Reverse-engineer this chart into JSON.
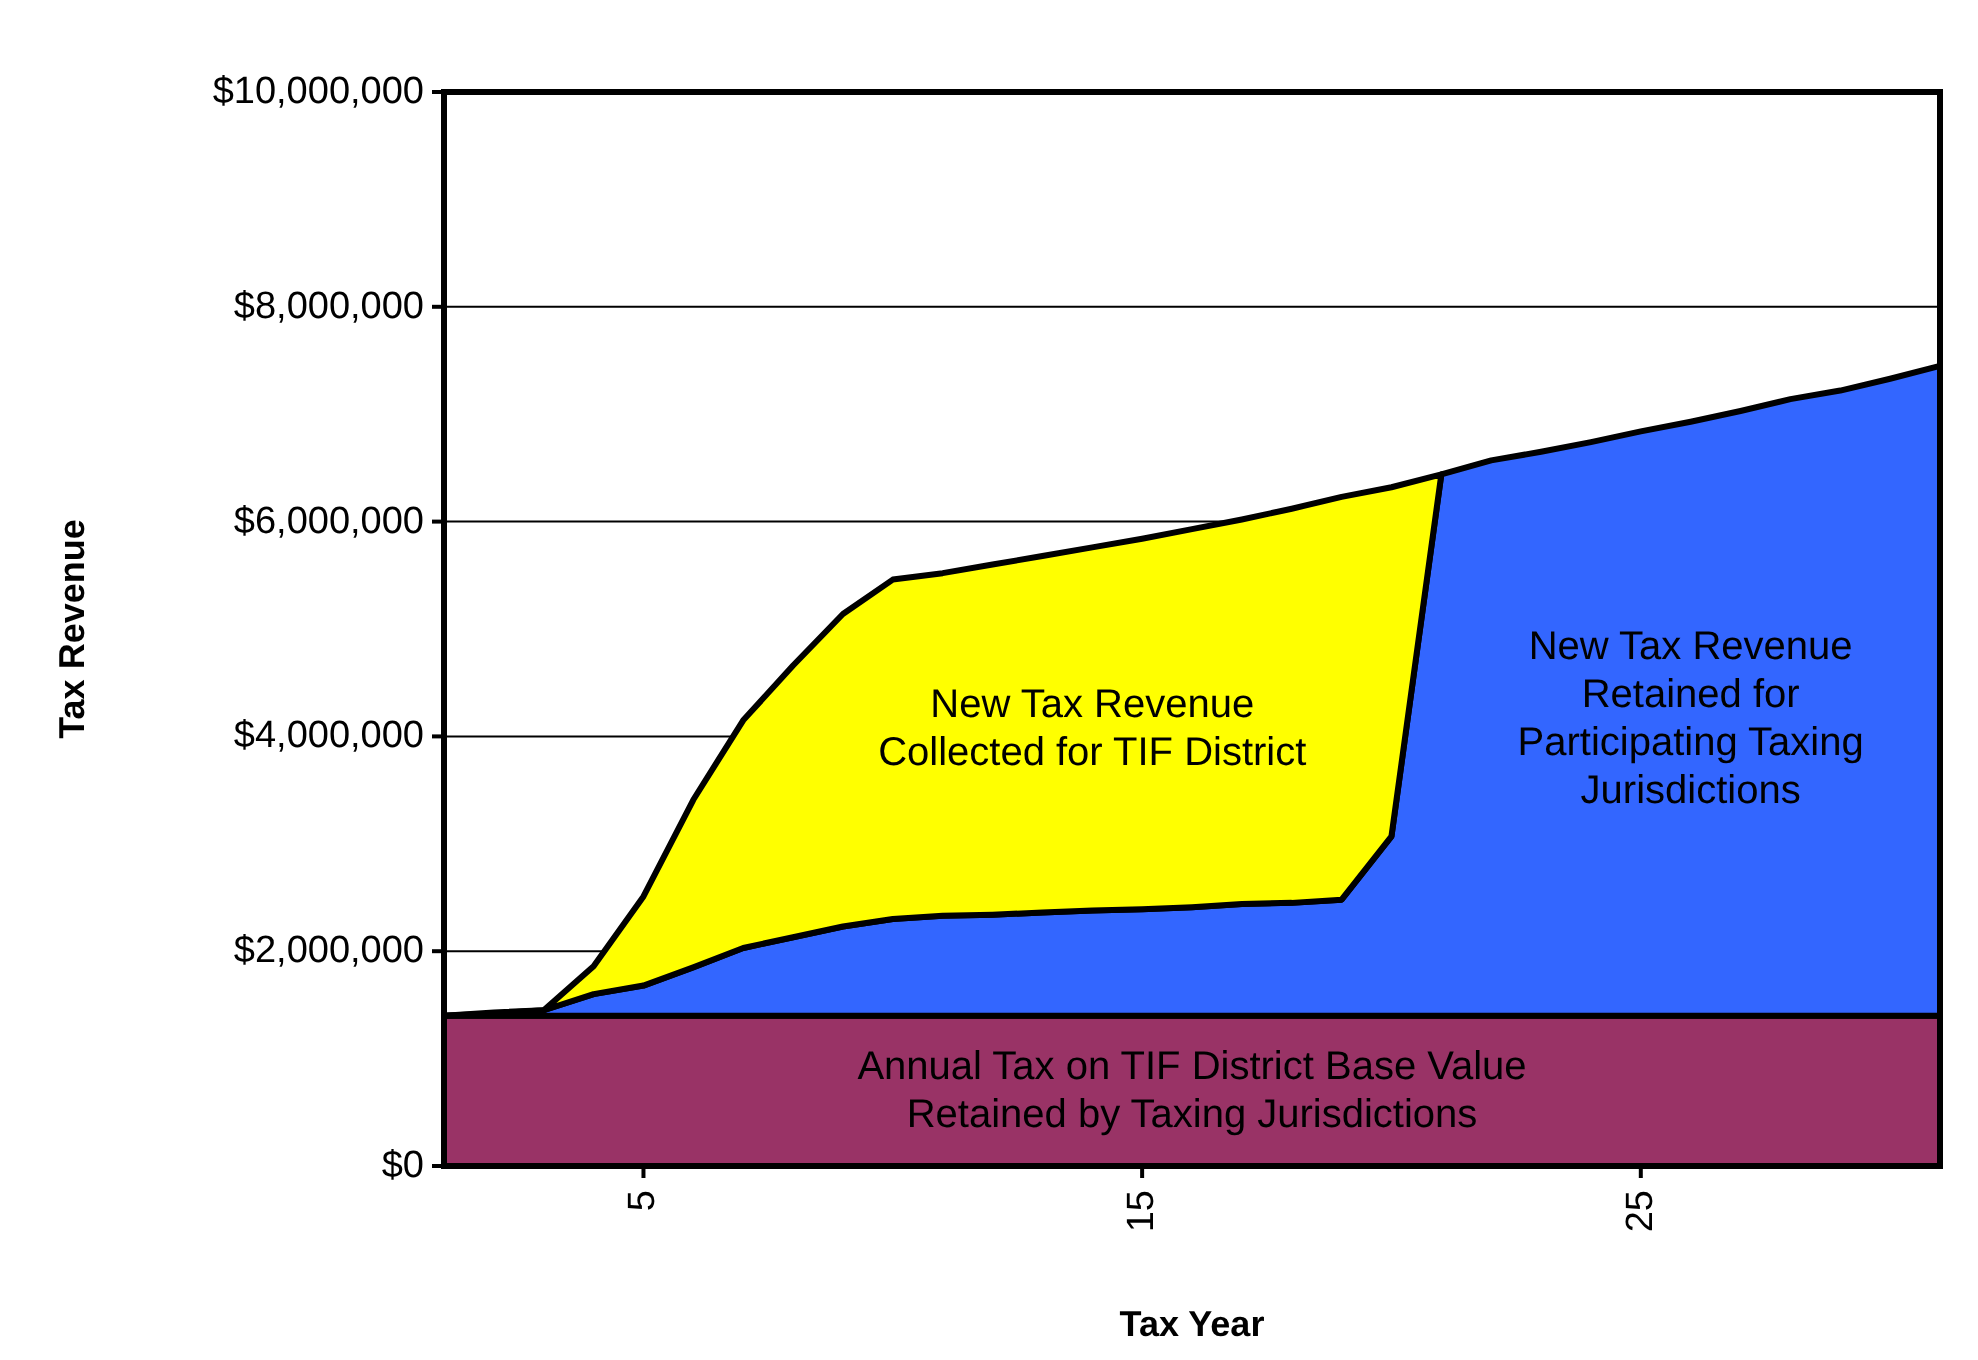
{
  "chart_data": {
    "type": "area",
    "stacked": true,
    "xlabel": "Tax Year",
    "ylabel": "Tax Revenue",
    "x": [
      1,
      2,
      3,
      4,
      5,
      6,
      7,
      8,
      9,
      10,
      11,
      12,
      13,
      14,
      15,
      16,
      17,
      18,
      19,
      20,
      21,
      22,
      23,
      24,
      25,
      26,
      27,
      28,
      29,
      30,
      31
    ],
    "xlim": [
      1,
      31
    ],
    "xticks": [
      5,
      15,
      25
    ],
    "ylim": [
      0,
      10000000
    ],
    "yticks": [
      {
        "value": 0,
        "label": "$0"
      },
      {
        "value": 2000000,
        "label": "$2,000,000"
      },
      {
        "value": 4000000,
        "label": "$4,000,000"
      },
      {
        "value": 6000000,
        "label": "$6,000,000"
      },
      {
        "value": 8000000,
        "label": "$8,000,000"
      },
      {
        "value": 10000000,
        "label": "$10,000,000"
      }
    ],
    "grid": "y",
    "series": [
      {
        "name": "Annual Tax on TIF District Base Value\nRetained by Taxing Jurisdictions",
        "color": "#993366",
        "values": [
          1400000,
          1400000,
          1400000,
          1400000,
          1400000,
          1400000,
          1400000,
          1400000,
          1400000,
          1400000,
          1400000,
          1400000,
          1400000,
          1400000,
          1400000,
          1400000,
          1400000,
          1400000,
          1400000,
          1400000,
          1400000,
          1400000,
          1400000,
          1400000,
          1400000,
          1400000,
          1400000,
          1400000,
          1400000,
          1400000,
          1400000
        ]
      },
      {
        "name": "New Tax Revenue\nRetained for\nParticipating Taxing\nJurisdictions",
        "color": "#3366ff",
        "values": [
          0,
          20000,
          50000,
          200000,
          280000,
          450000,
          630000,
          730000,
          830000,
          900000,
          930000,
          940000,
          960000,
          980000,
          990000,
          1010000,
          1040000,
          1050000,
          1080000,
          1670000,
          5040000,
          5170000,
          5250000,
          5340000,
          5440000,
          5530000,
          5630000,
          5740000,
          5820000,
          5930000,
          6050000
        ]
      },
      {
        "name": "New Tax Revenue\nCollected for TIF District",
        "color": "#ffff00",
        "values": [
          0,
          10000,
          0,
          260000,
          830000,
          1560000,
          2120000,
          2530000,
          2910000,
          3160000,
          3190000,
          3260000,
          3320000,
          3380000,
          3450000,
          3520000,
          3580000,
          3670000,
          3750000,
          3250000,
          0,
          null,
          null,
          null,
          null,
          null,
          null,
          null,
          null,
          null,
          null
        ]
      }
    ]
  }
}
